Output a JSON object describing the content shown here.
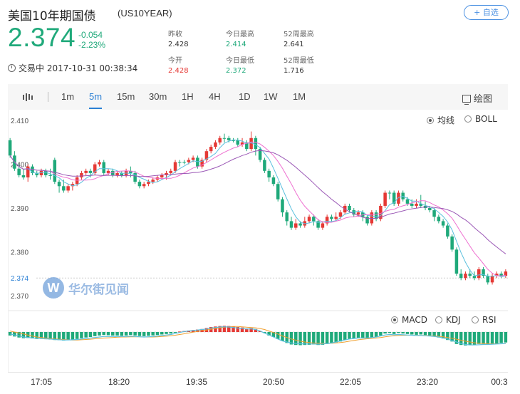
{
  "header": {
    "title": "美国10年期国债",
    "code": "(US10YEAR)",
    "watch_button": "+ 自选",
    "price": "2.374",
    "change": "-0.054",
    "change_pct": "-2.23%",
    "status": "交易中 2017-10-31 00:38:34",
    "stats": [
      {
        "label": "昨收",
        "value": "2.428"
      },
      {
        "label": "今日最高",
        "value": "2.414"
      },
      {
        "label": "52周最高",
        "value": "2.641"
      },
      {
        "label": "今开",
        "value": "2.428"
      },
      {
        "label": "今日最低",
        "value": "2.372"
      },
      {
        "label": "52周最低",
        "value": "1.716"
      }
    ]
  },
  "toolbar": {
    "periods": [
      "1m",
      "5m",
      "15m",
      "30m",
      "1H",
      "4H",
      "1D",
      "1W",
      "1M"
    ],
    "active_period": "5m",
    "draw_label": "绘图"
  },
  "overlays": {
    "ma_label": "均线",
    "boll_label": "BOLL",
    "selected": "均线"
  },
  "indicators": {
    "macd_label": "MACD",
    "kdj_label": "KDJ",
    "rsi_label": "RSI",
    "selected": "MACD"
  },
  "watermark": {
    "text": "华尔街见闻"
  },
  "colors": {
    "up": "#e53935",
    "down": "#1fa97a",
    "accent": "#2a7fd4",
    "ma_fast": "#5bc0de",
    "ma_mid": "#ee6fd0",
    "ma_slow": "#9b59b6",
    "macd_line": "#5bc0de",
    "signal_line": "#f0a030"
  },
  "chart_data": {
    "type": "candlestick",
    "y_ticks": [
      "2.410",
      "2.400",
      "2.390",
      "2.380",
      "2.370"
    ],
    "current_label": "2.374",
    "ylim": [
      2.3685,
      2.4115
    ],
    "x_ticks": [
      "17:05",
      "18:20",
      "19:35",
      "20:50",
      "22:05",
      "23:20",
      "00:3"
    ],
    "candles": [
      [
        2.4055,
        2.402,
        2.406,
        2.4015
      ],
      [
        2.402,
        2.399,
        2.403,
        2.3985
      ],
      [
        2.399,
        2.3975,
        2.4,
        2.397
      ],
      [
        2.3975,
        2.397,
        2.399,
        2.3965
      ],
      [
        2.397,
        2.3995,
        2.4,
        2.396
      ],
      [
        2.3995,
        2.398,
        2.4,
        2.3975
      ],
      [
        2.398,
        2.3975,
        2.3985,
        2.397
      ],
      [
        2.3975,
        2.3985,
        2.399,
        2.397
      ],
      [
        2.3985,
        2.3975,
        2.399,
        2.397
      ],
      [
        2.3975,
        2.3975,
        2.399,
        2.3965
      ],
      [
        2.401,
        2.396,
        2.4015,
        2.3955
      ],
      [
        2.396,
        2.395,
        2.3965,
        2.3935
      ],
      [
        2.395,
        2.394,
        2.3965,
        2.3935
      ],
      [
        2.394,
        2.395,
        2.3955,
        2.3935
      ],
      [
        2.395,
        2.3955,
        2.396,
        2.394
      ],
      [
        2.3955,
        2.397,
        2.3975,
        2.395
      ],
      [
        2.397,
        2.398,
        2.3985,
        2.3965
      ],
      [
        2.398,
        2.3985,
        2.399,
        2.3975
      ],
      [
        2.3985,
        2.398,
        2.399,
        2.397
      ],
      [
        2.398,
        2.4,
        2.4005,
        2.3975
      ],
      [
        2.4,
        2.4005,
        2.401,
        2.3995
      ],
      [
        2.4005,
        2.398,
        2.401,
        2.3975
      ],
      [
        2.398,
        2.3985,
        2.399,
        2.3975
      ],
      [
        2.3985,
        2.3975,
        2.399,
        2.397
      ],
      [
        2.3975,
        2.398,
        2.3985,
        2.397
      ],
      [
        2.398,
        2.3975,
        2.3985,
        2.397
      ],
      [
        2.3975,
        2.3985,
        2.399,
        2.397
      ],
      [
        2.3985,
        2.398,
        2.3995,
        2.397
      ],
      [
        2.398,
        2.396,
        2.3985,
        2.3955
      ],
      [
        2.396,
        2.395,
        2.3965,
        2.3945
      ],
      [
        2.395,
        2.3955,
        2.396,
        2.3945
      ],
      [
        2.3955,
        2.396,
        2.3965,
        2.395
      ],
      [
        2.396,
        2.3965,
        2.397,
        2.3955
      ],
      [
        2.3965,
        2.397,
        2.3975,
        2.396
      ],
      [
        2.397,
        2.3975,
        2.398,
        2.3965
      ],
      [
        2.3975,
        2.398,
        2.3985,
        2.3965
      ],
      [
        2.398,
        2.3985,
        2.399,
        2.3975
      ],
      [
        2.3985,
        2.4005,
        2.401,
        2.398
      ],
      [
        2.4005,
        2.4005,
        2.401,
        2.3995
      ],
      [
        2.4005,
        2.4005,
        2.401,
        2.4
      ],
      [
        2.4005,
        2.401,
        2.4015,
        2.4
      ],
      [
        2.401,
        2.4015,
        2.402,
        2.4005
      ],
      [
        2.4015,
        2.3995,
        2.402,
        2.399
      ],
      [
        2.3995,
        2.401,
        2.4015,
        2.399
      ],
      [
        2.401,
        2.403,
        2.4035,
        2.4005
      ],
      [
        2.403,
        2.404,
        2.4045,
        2.4025
      ],
      [
        2.404,
        2.405,
        2.4055,
        2.4035
      ],
      [
        2.405,
        2.406,
        2.4065,
        2.4045
      ],
      [
        2.406,
        2.406,
        2.407,
        2.405
      ],
      [
        2.406,
        2.4055,
        2.4065,
        2.405
      ],
      [
        2.4055,
        2.4055,
        2.406,
        2.405
      ],
      [
        2.4055,
        2.4045,
        2.406,
        2.404
      ],
      [
        2.4045,
        2.405,
        2.406,
        2.404
      ],
      [
        2.405,
        2.4035,
        2.4055,
        2.403
      ],
      [
        2.4035,
        2.406,
        2.4075,
        2.403
      ],
      [
        2.406,
        2.4035,
        2.4065,
        2.402
      ],
      [
        2.4035,
        2.401,
        2.404,
        2.4005
      ],
      [
        2.401,
        2.3985,
        2.4015,
        2.398
      ],
      [
        2.3985,
        2.397,
        2.399,
        2.396
      ],
      [
        2.397,
        2.3955,
        2.3975,
        2.395
      ],
      [
        2.3955,
        2.392,
        2.396,
        2.3915
      ],
      [
        2.392,
        2.389,
        2.3925,
        2.388
      ],
      [
        2.389,
        2.387,
        2.3895,
        2.386
      ],
      [
        2.387,
        2.3855,
        2.388,
        2.385
      ],
      [
        2.3855,
        2.3865,
        2.3875,
        2.385
      ],
      [
        2.3865,
        2.386,
        2.387,
        2.3855
      ],
      [
        2.386,
        2.387,
        2.388,
        2.3855
      ],
      [
        2.387,
        2.388,
        2.3885,
        2.3865
      ],
      [
        2.388,
        2.387,
        2.3885,
        2.386
      ],
      [
        2.387,
        2.3855,
        2.3875,
        2.385
      ],
      [
        2.3855,
        2.3865,
        2.387,
        2.385
      ],
      [
        2.3865,
        2.388,
        2.3885,
        2.386
      ],
      [
        2.388,
        2.3875,
        2.3885,
        2.387
      ],
      [
        2.3875,
        2.388,
        2.389,
        2.387
      ],
      [
        2.388,
        2.389,
        2.3895,
        2.3875
      ],
      [
        2.389,
        2.3905,
        2.391,
        2.3885
      ],
      [
        2.3905,
        2.3895,
        2.391,
        2.389
      ],
      [
        2.3895,
        2.3885,
        2.39,
        2.388
      ],
      [
        2.3885,
        2.389,
        2.3895,
        2.388
      ],
      [
        2.389,
        2.388,
        2.3895,
        2.387
      ],
      [
        2.388,
        2.3865,
        2.3885,
        2.386
      ],
      [
        2.3865,
        2.389,
        2.3895,
        2.386
      ],
      [
        2.389,
        2.3875,
        2.3895,
        2.387
      ],
      [
        2.3875,
        2.3905,
        2.391,
        2.387
      ],
      [
        2.3905,
        2.3935,
        2.394,
        2.39
      ],
      [
        2.3935,
        2.3935,
        2.394,
        2.392
      ],
      [
        2.3935,
        2.391,
        2.394,
        2.3905
      ],
      [
        2.391,
        2.3935,
        2.394,
        2.3905
      ],
      [
        2.3935,
        2.392,
        2.394,
        2.3915
      ],
      [
        2.392,
        2.391,
        2.3925,
        2.3905
      ],
      [
        2.391,
        2.3905,
        2.392,
        2.39
      ],
      [
        2.3905,
        2.391,
        2.392,
        2.39
      ],
      [
        2.391,
        2.3905,
        2.393,
        2.39
      ],
      [
        2.3905,
        2.39,
        2.3915,
        2.3895
      ],
      [
        2.39,
        2.3895,
        2.3905,
        2.389
      ],
      [
        2.3895,
        2.388,
        2.39,
        2.387
      ],
      [
        2.388,
        2.387,
        2.3885,
        2.3865
      ],
      [
        2.387,
        2.386,
        2.3875,
        2.3855
      ],
      [
        2.386,
        2.3835,
        2.3865,
        2.383
      ],
      [
        2.3835,
        2.3805,
        2.384,
        2.38
      ],
      [
        2.3805,
        2.375,
        2.381,
        2.3745
      ],
      [
        2.375,
        2.374,
        2.376,
        2.3735
      ],
      [
        2.374,
        2.375,
        2.3755,
        2.3735
      ],
      [
        2.375,
        2.3745,
        2.376,
        2.374
      ],
      [
        2.3745,
        2.374,
        2.3755,
        2.3735
      ],
      [
        2.374,
        2.376,
        2.3765,
        2.3735
      ],
      [
        2.376,
        2.3745,
        2.3765,
        2.374
      ],
      [
        2.3745,
        2.373,
        2.375,
        2.3725
      ],
      [
        2.373,
        2.3745,
        2.375,
        2.3725
      ],
      [
        2.3745,
        2.375,
        2.3755,
        2.374
      ],
      [
        2.375,
        2.3745,
        2.3755,
        2.374
      ],
      [
        2.3745,
        2.3755,
        2.376,
        2.374
      ]
    ],
    "macd_hist": [
      -0.35,
      -0.45,
      -0.55,
      -0.62,
      -0.6,
      -0.65,
      -0.7,
      -0.68,
      -0.72,
      -0.75,
      -0.8,
      -0.82,
      -0.85,
      -0.8,
      -0.78,
      -0.7,
      -0.62,
      -0.55,
      -0.5,
      -0.42,
      -0.35,
      -0.3,
      -0.32,
      -0.35,
      -0.35,
      -0.38,
      -0.35,
      -0.3,
      -0.35,
      -0.4,
      -0.42,
      -0.38,
      -0.34,
      -0.3,
      -0.25,
      -0.2,
      -0.15,
      -0.05,
      0.05,
      0.1,
      0.15,
      0.2,
      0.25,
      0.3,
      0.4,
      0.5,
      0.55,
      0.6,
      0.62,
      0.6,
      0.55,
      0.5,
      0.45,
      0.35,
      0.4,
      0.3,
      0.1,
      -0.1,
      -0.35,
      -0.5,
      -0.7,
      -0.9,
      -1.1,
      -1.25,
      -1.3,
      -1.32,
      -1.3,
      -1.28,
      -1.25,
      -1.3,
      -1.28,
      -1.2,
      -1.15,
      -1.05,
      -0.95,
      -0.8,
      -0.7,
      -0.65,
      -0.6,
      -0.62,
      -0.65,
      -0.55,
      -0.5,
      -0.35,
      -0.15,
      -0.1,
      -0.2,
      -0.1,
      -0.15,
      -0.2,
      -0.25,
      -0.28,
      -0.25,
      -0.3,
      -0.35,
      -0.45,
      -0.55,
      -0.65,
      -0.8,
      -0.95,
      -1.2,
      -1.3,
      -1.35,
      -1.3,
      -1.3,
      -1.2,
      -1.2,
      -1.25,
      -1.2,
      -1.15,
      -1.1,
      -1.05
    ],
    "macd_line": [
      -0.2,
      -0.3,
      -0.4,
      -0.5,
      -0.55,
      -0.6,
      -0.62,
      -0.65,
      -0.68,
      -0.7,
      -0.75,
      -0.78,
      -0.8,
      -0.8,
      -0.78,
      -0.75,
      -0.7,
      -0.65,
      -0.6,
      -0.55,
      -0.5,
      -0.45,
      -0.45,
      -0.45,
      -0.45,
      -0.45,
      -0.45,
      -0.42,
      -0.45,
      -0.48,
      -0.5,
      -0.48,
      -0.45,
      -0.4,
      -0.35,
      -0.3,
      -0.25,
      -0.15,
      -0.05,
      0.05,
      0.1,
      0.15,
      0.2,
      0.25,
      0.3,
      0.4,
      0.45,
      0.5,
      0.52,
      0.5,
      0.45,
      0.4,
      0.35,
      0.3,
      0.32,
      0.25,
      0.1,
      -0.1,
      -0.3,
      -0.5,
      -0.7,
      -0.9,
      -1.0,
      -1.1,
      -1.15,
      -1.18,
      -1.2,
      -1.2,
      -1.2,
      -1.22,
      -1.2,
      -1.15,
      -1.1,
      -1.0,
      -0.9,
      -0.8,
      -0.7,
      -0.65,
      -0.6,
      -0.6,
      -0.6,
      -0.55,
      -0.5,
      -0.4,
      -0.3,
      -0.25,
      -0.28,
      -0.25,
      -0.28,
      -0.3,
      -0.32,
      -0.35,
      -0.35,
      -0.38,
      -0.4,
      -0.45,
      -0.5,
      -0.6,
      -0.7,
      -0.85,
      -1.0,
      -1.15,
      -1.25,
      -1.3,
      -1.3,
      -1.28,
      -1.25,
      -1.25,
      -1.22,
      -1.2,
      -1.18,
      -1.15
    ],
    "signal_line": [
      0.1,
      0.0,
      -0.1,
      -0.2,
      -0.3,
      -0.4,
      -0.5,
      -0.55,
      -0.6,
      -0.65,
      -0.7,
      -0.72,
      -0.75,
      -0.78,
      -0.8,
      -0.8,
      -0.78,
      -0.75,
      -0.72,
      -0.68,
      -0.64,
      -0.6,
      -0.58,
      -0.55,
      -0.52,
      -0.5,
      -0.5,
      -0.48,
      -0.48,
      -0.48,
      -0.5,
      -0.5,
      -0.5,
      -0.48,
      -0.45,
      -0.42,
      -0.38,
      -0.32,
      -0.25,
      -0.18,
      -0.1,
      -0.02,
      0.05,
      0.12,
      0.2,
      0.28,
      0.35,
      0.42,
      0.48,
      0.52,
      0.55,
      0.55,
      0.52,
      0.48,
      0.45,
      0.42,
      0.35,
      0.25,
      0.1,
      -0.05,
      -0.2,
      -0.4,
      -0.55,
      -0.7,
      -0.82,
      -0.92,
      -1.0,
      -1.05,
      -1.1,
      -1.12,
      -1.14,
      -1.14,
      -1.13,
      -1.1,
      -1.05,
      -1.0,
      -0.92,
      -0.85,
      -0.78,
      -0.72,
      -0.68,
      -0.64,
      -0.6,
      -0.55,
      -0.48,
      -0.42,
      -0.38,
      -0.35,
      -0.33,
      -0.32,
      -0.32,
      -0.33,
      -0.34,
      -0.35,
      -0.37,
      -0.4,
      -0.43,
      -0.48,
      -0.55,
      -0.63,
      -0.72,
      -0.82,
      -0.92,
      -1.0,
      -1.08,
      -1.12,
      -1.15,
      -1.17,
      -1.18,
      -1.18,
      -1.18,
      -1.18
    ]
  }
}
